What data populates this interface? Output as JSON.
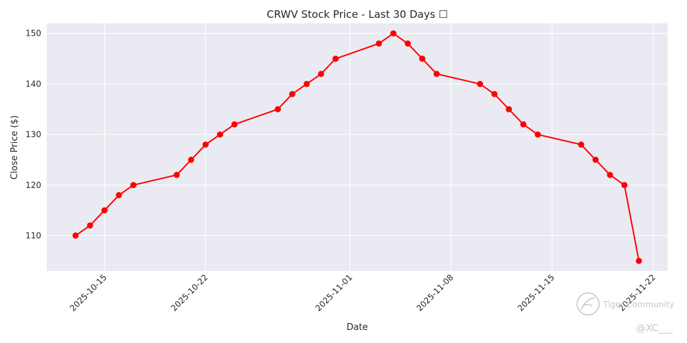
{
  "chart_data": {
    "type": "line",
    "title": "CRWV Stock Price - Last 30 Days ☐",
    "xlabel": "Date",
    "ylabel": "Close Price ($)",
    "xlim": [
      "2025-10-11",
      "2025-11-23"
    ],
    "ylim": [
      103,
      152
    ],
    "x_ticks": [
      "2025-10-15",
      "2025-10-22",
      "2025-11-01",
      "2025-11-08",
      "2025-11-15",
      "2025-11-22"
    ],
    "y_ticks": [
      110,
      120,
      130,
      140,
      150
    ],
    "grid": true,
    "colors": {
      "line": "#ff0000",
      "background": "#eaeaf2",
      "grid": "#ffffff"
    },
    "series": [
      {
        "x": [
          "2025-10-13",
          "2025-10-14",
          "2025-10-15",
          "2025-10-16",
          "2025-10-17",
          "2025-10-20",
          "2025-10-21",
          "2025-10-22",
          "2025-10-23",
          "2025-10-24",
          "2025-10-27",
          "2025-10-28",
          "2025-10-29",
          "2025-10-30",
          "2025-10-31",
          "2025-11-03",
          "2025-11-04",
          "2025-11-05",
          "2025-11-06",
          "2025-11-07",
          "2025-11-10",
          "2025-11-11",
          "2025-11-12",
          "2025-11-13",
          "2025-11-14",
          "2025-11-17",
          "2025-11-18",
          "2025-11-19",
          "2025-11-20",
          "2025-11-21"
        ],
        "values": [
          110,
          112,
          115,
          118,
          120,
          122,
          125,
          128,
          130,
          132,
          135,
          138,
          140,
          142,
          145,
          148,
          150,
          148,
          145,
          142,
          140,
          138,
          135,
          132,
          130,
          128,
          125,
          122,
          120,
          105
        ]
      }
    ]
  },
  "watermark": {
    "brand": "Tiger Community",
    "handle": "@XC___"
  }
}
